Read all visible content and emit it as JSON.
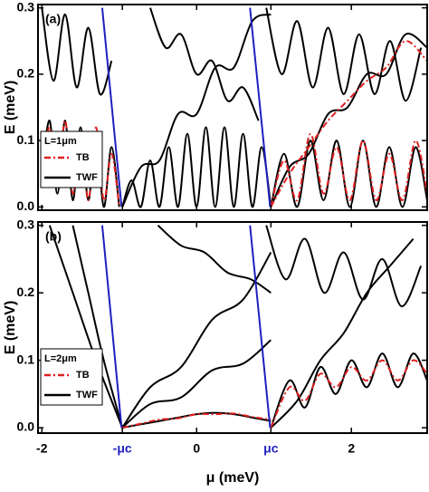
{
  "chart_data": [
    {
      "type": "line",
      "panel_label": "(a)",
      "ylabel": "E (meV)",
      "xtick_labels": false,
      "xlim": [
        -2.05,
        2.98
      ],
      "ylim": [
        -0.005,
        0.305
      ],
      "xticks": [
        -2,
        -0.96,
        0,
        0.96,
        2
      ],
      "yticks": [
        {
          "value": 0,
          "label": "0.0"
        },
        0.1,
        0.2,
        0.3
      ],
      "legend": {
        "title": "L=1μm",
        "entries": [
          {
            "name": "TB",
            "color": "#e02020",
            "style": "dashdot"
          },
          {
            "name": "TWF",
            "color": "#000000",
            "style": "solid"
          }
        ]
      },
      "series": [
        {
          "color": "#000000",
          "style": "solid",
          "x": [
            -2.0,
            -1.9,
            -1.8,
            -1.7,
            -1.6,
            -1.5,
            -1.4,
            -1.3,
            -1.2,
            -1.1,
            -1.0
          ],
          "values": [
            0.05,
            0.13,
            0.02,
            0.13,
            0.01,
            0.12,
            0.01,
            0.11,
            0.0,
            0.09,
            0.0
          ]
        },
        {
          "color": "#000000",
          "style": "solid",
          "x": [
            -0.96,
            -0.84,
            -0.72,
            -0.6,
            -0.48,
            -0.36,
            -0.24,
            -0.12,
            0,
            0.12,
            0.24,
            0.36,
            0.48,
            0.6,
            0.72,
            0.84,
            0.96
          ],
          "values": [
            0,
            0.04,
            0.0,
            0.07,
            0.0,
            0.09,
            0.0,
            0.11,
            0.0,
            0.12,
            0.0,
            0.12,
            0.0,
            0.11,
            0.0,
            0.09,
            0.0
          ]
        },
        {
          "color": "#000000",
          "style": "solid",
          "x": [
            -0.96,
            -0.72,
            -0.48,
            -0.24,
            0,
            0.24,
            0.48,
            0.72,
            0.96
          ],
          "values": [
            0.0,
            0.06,
            0.07,
            0.14,
            0.14,
            0.21,
            0.21,
            0.28,
            0.29
          ]
        },
        {
          "color": "#000000",
          "style": "solid",
          "x": [
            -0.6,
            -0.4,
            -0.2,
            0,
            0.2,
            0.4,
            0.6,
            0.8
          ],
          "values": [
            0.3,
            0.24,
            0.26,
            0.2,
            0.22,
            0.16,
            0.18,
            0.13
          ]
        },
        {
          "color": "#000000",
          "style": "solid",
          "x": [
            -2.0,
            -1.85,
            -1.7,
            -1.55,
            -1.4,
            -1.25,
            -1.1
          ],
          "values": [
            0.3,
            0.19,
            0.29,
            0.18,
            0.27,
            0.17,
            0.22
          ]
        },
        {
          "color": "#000000",
          "style": "solid",
          "x": [
            0.96,
            1.13,
            1.3,
            1.47,
            1.64,
            1.81,
            1.98,
            2.15,
            2.32,
            2.49,
            2.66,
            2.83,
            2.98
          ],
          "values": [
            0,
            0.08,
            0.0,
            0.1,
            0.01,
            0.1,
            0.0,
            0.1,
            0.0,
            0.09,
            0.0,
            0.09,
            0.01
          ]
        },
        {
          "color": "#000000",
          "style": "solid",
          "x": [
            0.96,
            1.2,
            1.45,
            1.7,
            1.95,
            2.2,
            2.45,
            2.7,
            2.98
          ],
          "values": [
            0,
            0.06,
            0.08,
            0.14,
            0.15,
            0.2,
            0.2,
            0.26,
            0.24
          ]
        },
        {
          "color": "#000000",
          "style": "solid",
          "x": [
            0.9,
            1.1,
            1.3,
            1.5,
            1.7,
            1.9,
            2.1,
            2.3,
            2.5,
            2.7,
            2.9
          ],
          "values": [
            0.3,
            0.2,
            0.28,
            0.18,
            0.27,
            0.17,
            0.26,
            0.17,
            0.25,
            0.16,
            0.24
          ]
        },
        {
          "color": "#e02020",
          "style": "dashdot",
          "x": [
            -2.0,
            -1.9,
            -1.8,
            -1.7,
            -1.6,
            -1.5,
            -1.4,
            -1.3,
            -1.2,
            -1.1,
            -1.0
          ],
          "values": [
            0.05,
            0.12,
            0.03,
            0.13,
            0.02,
            0.11,
            0.01,
            0.12,
            0.01,
            0.08,
            0.0
          ]
        },
        {
          "color": "#e02020",
          "style": "dashdot",
          "x": [
            0.96,
            1.13,
            1.3,
            1.47,
            1.64,
            1.81,
            1.98,
            2.15,
            2.32,
            2.49,
            2.66,
            2.83,
            2.98
          ],
          "values": [
            0,
            0.07,
            0.01,
            0.11,
            0.02,
            0.09,
            0.01,
            0.1,
            0.01,
            0.08,
            0.01,
            0.1,
            0.02
          ]
        },
        {
          "color": "#e02020",
          "style": "dashdot",
          "x": [
            0.96,
            1.2,
            1.45,
            1.7,
            1.95,
            2.2,
            2.45,
            2.7,
            2.98
          ],
          "values": [
            0,
            0.05,
            0.09,
            0.13,
            0.16,
            0.19,
            0.21,
            0.25,
            0.22
          ]
        },
        {
          "color": "#1f1fbf",
          "style": "solid",
          "x": [
            -1.22,
            -0.97
          ],
          "values": [
            0.3,
            0
          ]
        },
        {
          "color": "#1f1fbf",
          "style": "solid",
          "x": [
            0.69,
            0.95
          ],
          "values": [
            0.3,
            0
          ]
        }
      ]
    },
    {
      "type": "line",
      "panel_label": "(b)",
      "ylabel": "E (meV)",
      "xlabel": "μ (meV)",
      "xtick_labels": true,
      "xlim": [
        -2.05,
        2.98
      ],
      "ylim": [
        -0.008,
        0.305
      ],
      "xticks": [
        -2,
        {
          "value": -0.96,
          "label": "-μc"
        },
        0,
        {
          "value": 0.96,
          "label": "μc"
        },
        2
      ],
      "yticks": [
        {
          "value": 0,
          "label": "0.0"
        },
        0.1,
        0.2,
        0.3
      ],
      "legend": {
        "title": "L=2μm",
        "entries": [
          {
            "name": "TB",
            "color": "#e02020",
            "style": "dashdot"
          },
          {
            "name": "TWF",
            "color": "#000000",
            "style": "solid"
          }
        ]
      },
      "series": [
        {
          "color": "#000000",
          "style": "solid",
          "x": [
            -0.96,
            -0.72,
            -0.48,
            -0.24,
            0,
            0.24,
            0.48,
            0.72,
            0.96
          ],
          "values": [
            0,
            0.005,
            0.01,
            0.015,
            0.02,
            0.022,
            0.02,
            0.015,
            0.01
          ]
        },
        {
          "color": "#000000",
          "style": "solid",
          "x": [
            -1.6,
            -1.4,
            -1.2,
            -0.96
          ],
          "values": [
            0.3,
            0.2,
            0.1,
            0
          ]
        },
        {
          "color": "#000000",
          "style": "solid",
          "x": [
            -1.9,
            -1.6,
            -1.3,
            -0.96
          ],
          "values": [
            0.3,
            0.2,
            0.1,
            0
          ]
        },
        {
          "color": "#000000",
          "style": "solid",
          "x": [
            -0.96,
            -0.6,
            -0.2,
            0.2,
            0.6,
            0.96
          ],
          "values": [
            0,
            0.06,
            0.09,
            0.16,
            0.19,
            0.26
          ]
        },
        {
          "color": "#000000",
          "style": "solid",
          "x": [
            -0.96,
            -0.6,
            -0.2,
            0.2,
            0.6,
            0.96
          ],
          "values": [
            0,
            0.035,
            0.045,
            0.085,
            0.095,
            0.13
          ]
        },
        {
          "color": "#000000",
          "style": "solid",
          "x": [
            -0.5,
            -0.2,
            0.1,
            0.4,
            0.7,
            0.96
          ],
          "values": [
            0.3,
            0.27,
            0.26,
            0.23,
            0.22,
            0.2
          ]
        },
        {
          "color": "#000000",
          "style": "solid",
          "x": [
            0.96,
            1.2,
            1.4,
            1.6,
            1.8,
            2.0,
            2.2,
            2.4,
            2.6,
            2.8,
            2.98
          ],
          "values": [
            0,
            0.07,
            0.03,
            0.09,
            0.05,
            0.1,
            0.06,
            0.11,
            0.06,
            0.11,
            0.07
          ]
        },
        {
          "color": "#000000",
          "style": "solid",
          "x": [
            0.96,
            1.3,
            1.6,
            1.9,
            2.2,
            2.5,
            2.8
          ],
          "values": [
            0,
            0.04,
            0.1,
            0.14,
            0.2,
            0.24,
            0.28
          ]
        },
        {
          "color": "#000000",
          "style": "solid",
          "x": [
            0.9,
            1.15,
            1.4,
            1.65,
            1.9,
            2.15,
            2.4,
            2.65,
            2.9
          ],
          "values": [
            0.3,
            0.22,
            0.28,
            0.2,
            0.26,
            0.19,
            0.25,
            0.18,
            0.24
          ]
        },
        {
          "color": "#e02020",
          "style": "dashdot",
          "x": [
            -0.96,
            -0.72,
            -0.48,
            -0.24,
            0,
            0.24,
            0.48,
            0.72,
            0.96
          ],
          "values": [
            0,
            0.006,
            0.012,
            0.014,
            0.02,
            0.02,
            0.021,
            0.016,
            0.012
          ]
        },
        {
          "color": "#e02020",
          "style": "dashdot",
          "x": [
            0.96,
            1.2,
            1.4,
            1.6,
            1.8,
            2.0,
            2.2,
            2.4,
            2.6,
            2.8,
            2.98
          ],
          "values": [
            0,
            0.06,
            0.04,
            0.08,
            0.06,
            0.09,
            0.07,
            0.1,
            0.07,
            0.1,
            0.08
          ]
        },
        {
          "color": "#1f1fbf",
          "style": "solid",
          "x": [
            -1.22,
            -0.97
          ],
          "values": [
            0.3,
            0
          ]
        },
        {
          "color": "#1f1fbf",
          "style": "solid",
          "x": [
            0.69,
            0.95
          ],
          "values": [
            0.3,
            0
          ]
        }
      ]
    }
  ]
}
